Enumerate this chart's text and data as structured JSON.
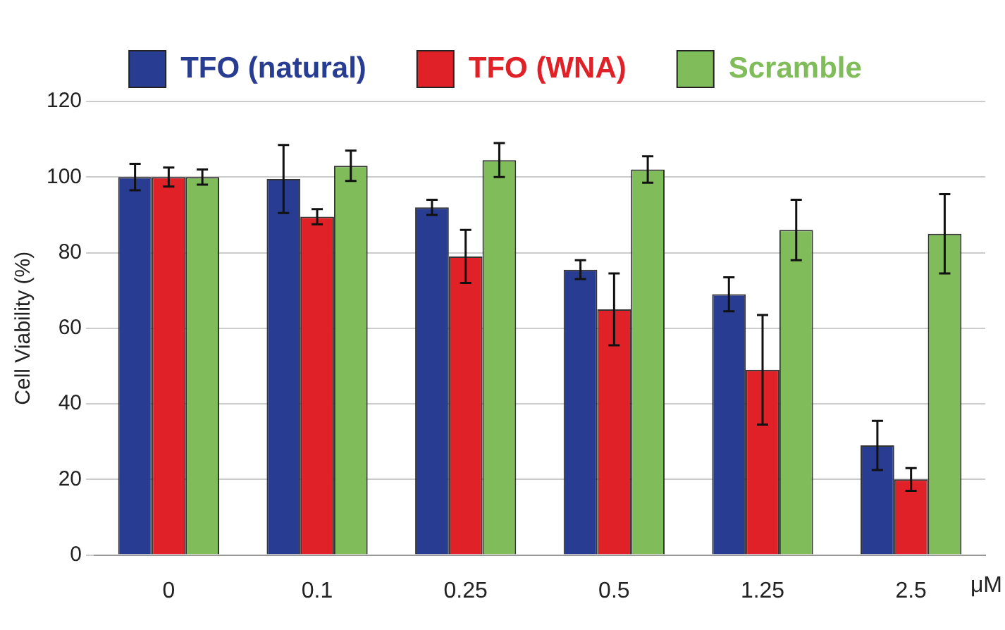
{
  "chart_data": {
    "type": "bar",
    "ylabel": "Cell Viability (%)",
    "xlabel": "μM",
    "categories": [
      "0",
      "0.1",
      "0.25",
      "0.5",
      "1.25",
      "2.5"
    ],
    "series": [
      {
        "name": "TFO (natural)",
        "color": "#283d92",
        "values": [
          100,
          99.5,
          92,
          75.5,
          69,
          29
        ],
        "errors": [
          3.5,
          9,
          2,
          2.5,
          4.5,
          6.5
        ]
      },
      {
        "name": "TFO (WNA)",
        "color": "#e02127",
        "values": [
          100,
          89.5,
          79,
          65,
          49,
          20
        ],
        "errors": [
          2.5,
          2,
          7,
          9.5,
          14.5,
          3
        ]
      },
      {
        "name": "Scramble",
        "color": "#80bd5a",
        "values": [
          100,
          103,
          104.5,
          102,
          86,
          85
        ],
        "errors": [
          2,
          4,
          4.5,
          3.5,
          8,
          10.5
        ]
      }
    ],
    "ylim": [
      0,
      120
    ],
    "yticks": [
      0,
      20,
      40,
      60,
      80,
      100,
      120
    ],
    "grid": "y",
    "legend": "top"
  }
}
